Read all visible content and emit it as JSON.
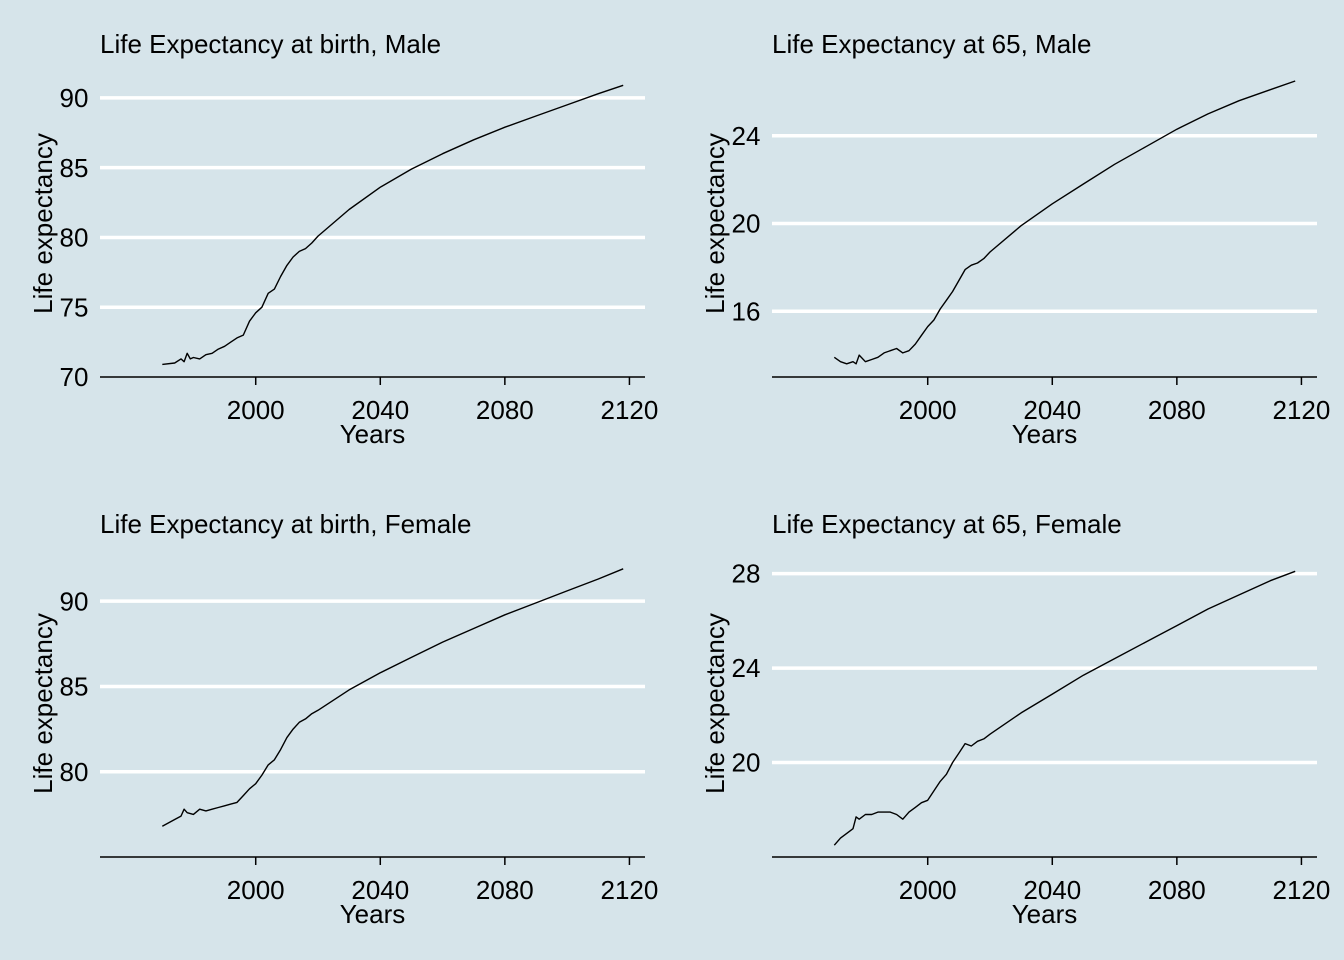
{
  "chart_data": [
    {
      "type": "line",
      "title": "Life Expectancy at birth, Male",
      "xlabel": "Years",
      "ylabel": "Life expectancy",
      "xlim": [
        1950,
        2125
      ],
      "ylim": [
        70,
        92
      ],
      "xticks": [
        2000,
        2040,
        2080,
        2120
      ],
      "yticks": [
        70,
        75,
        80,
        85,
        90
      ],
      "grid": true,
      "series": [
        {
          "x": [
            1970,
            1974,
            1976,
            1977,
            1978,
            1979,
            1980,
            1982,
            1984,
            1986,
            1988,
            1990,
            1992,
            1994,
            1996,
            1998,
            2000,
            2002,
            2004,
            2006,
            2008,
            2010,
            2012,
            2014,
            2016,
            2018,
            2020,
            2030,
            2040,
            2050,
            2060,
            2070,
            2080,
            2090,
            2100,
            2110,
            2118
          ],
          "y": [
            70.9,
            71.0,
            71.3,
            71.1,
            71.7,
            71.3,
            71.4,
            71.3,
            71.6,
            71.7,
            72.0,
            72.2,
            72.5,
            72.8,
            73.0,
            74.0,
            74.6,
            75.0,
            76.0,
            76.3,
            77.2,
            78.0,
            78.6,
            79.0,
            79.2,
            79.6,
            80.1,
            82.0,
            83.6,
            84.9,
            86.0,
            87.0,
            87.9,
            88.7,
            89.5,
            90.3,
            90.9
          ]
        }
      ]
    },
    {
      "type": "line",
      "title": "Life Expectancy at 65, Male",
      "xlabel": "Years",
      "ylabel": "Life expectancy",
      "xlim": [
        1950,
        2125
      ],
      "ylim": [
        13,
        27
      ],
      "xticks": [
        2000,
        2040,
        2080,
        2120
      ],
      "yticks": [
        16,
        20,
        24
      ],
      "grid": true,
      "series": [
        {
          "x": [
            1970,
            1972,
            1974,
            1976,
            1977,
            1978,
            1980,
            1982,
            1984,
            1986,
            1988,
            1990,
            1992,
            1994,
            1996,
            1998,
            2000,
            2002,
            2004,
            2006,
            2008,
            2010,
            2012,
            2014,
            2016,
            2018,
            2020,
            2030,
            2040,
            2050,
            2060,
            2070,
            2080,
            2090,
            2100,
            2110,
            2118
          ],
          "y": [
            13.9,
            13.7,
            13.6,
            13.7,
            13.6,
            14.0,
            13.7,
            13.8,
            13.9,
            14.1,
            14.2,
            14.3,
            14.1,
            14.2,
            14.5,
            14.9,
            15.3,
            15.6,
            16.1,
            16.5,
            16.9,
            17.4,
            17.9,
            18.1,
            18.2,
            18.4,
            18.7,
            19.9,
            20.9,
            21.8,
            22.7,
            23.5,
            24.3,
            25.0,
            25.6,
            26.1,
            26.5
          ]
        }
      ]
    },
    {
      "type": "line",
      "title": "Life Expectancy at birth, Female",
      "xlabel": "Years",
      "ylabel": "Life expectancy",
      "xlim": [
        1950,
        2125
      ],
      "ylim": [
        75,
        93
      ],
      "xticks": [
        2000,
        2040,
        2080,
        2120
      ],
      "yticks": [
        80,
        85,
        90
      ],
      "grid": true,
      "series": [
        {
          "x": [
            1970,
            1972,
            1974,
            1976,
            1977,
            1978,
            1980,
            1982,
            1984,
            1986,
            1988,
            1990,
            1992,
            1994,
            1996,
            1998,
            2000,
            2002,
            2004,
            2006,
            2008,
            2010,
            2012,
            2014,
            2016,
            2018,
            2020,
            2030,
            2040,
            2050,
            2060,
            2070,
            2080,
            2090,
            2100,
            2110,
            2118
          ],
          "y": [
            76.8,
            77.0,
            77.2,
            77.4,
            77.8,
            77.6,
            77.5,
            77.8,
            77.7,
            77.8,
            77.9,
            78.0,
            78.1,
            78.2,
            78.6,
            79.0,
            79.3,
            79.8,
            80.4,
            80.7,
            81.3,
            82.0,
            82.5,
            82.9,
            83.1,
            83.4,
            83.6,
            84.8,
            85.8,
            86.7,
            87.6,
            88.4,
            89.2,
            89.9,
            90.6,
            91.3,
            91.9
          ]
        }
      ]
    },
    {
      "type": "line",
      "title": "Life Expectancy at 65, Female",
      "xlabel": "Years",
      "ylabel": "Life expectancy",
      "xlim": [
        1950,
        2125
      ],
      "ylim": [
        16,
        29
      ],
      "xticks": [
        2000,
        2040,
        2080,
        2120
      ],
      "yticks": [
        20,
        24,
        28
      ],
      "grid": true,
      "series": [
        {
          "x": [
            1970,
            1972,
            1974,
            1976,
            1977,
            1978,
            1980,
            1982,
            1984,
            1986,
            1988,
            1990,
            1992,
            1994,
            1996,
            1998,
            2000,
            2002,
            2004,
            2006,
            2008,
            2010,
            2012,
            2014,
            2016,
            2018,
            2020,
            2030,
            2040,
            2050,
            2060,
            2070,
            2080,
            2090,
            2100,
            2110,
            2118
          ],
          "y": [
            16.5,
            16.8,
            17.0,
            17.2,
            17.7,
            17.6,
            17.8,
            17.8,
            17.9,
            17.9,
            17.9,
            17.8,
            17.6,
            17.9,
            18.1,
            18.3,
            18.4,
            18.8,
            19.2,
            19.5,
            20.0,
            20.4,
            20.8,
            20.7,
            20.9,
            21.0,
            21.2,
            22.1,
            22.9,
            23.7,
            24.4,
            25.1,
            25.8,
            26.5,
            27.1,
            27.7,
            28.1
          ]
        }
      ]
    }
  ]
}
